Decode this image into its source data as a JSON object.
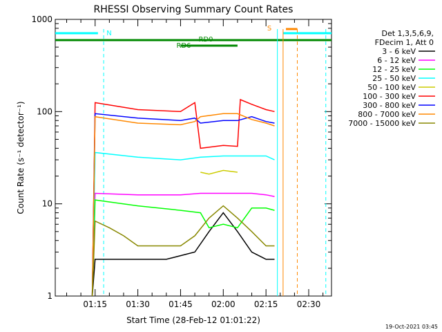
{
  "chart_data": {
    "type": "line",
    "title": "RHESSI Observing Summary Count Rates",
    "xlabel": "Start Time (28-Feb-12 01:01:22)",
    "ylabel": "Count Rate (s⁻¹ detector⁻¹)",
    "ylog": true,
    "ylim": [
      1,
      1000
    ],
    "xlim": [
      "01:01",
      "02:38"
    ],
    "x_ticks": [
      "01:15",
      "01:30",
      "01:45",
      "02:00",
      "02:15",
      "02:30"
    ],
    "y_ticks": [
      "1",
      "10",
      "100",
      "1000"
    ],
    "grid": false,
    "legend_header": [
      "Det 1,3,5,6,9,",
      "FDecim 1, Att 0"
    ],
    "legend_position": "right",
    "series": [
      {
        "name": "3 - 6 keV",
        "color": "#000000",
        "x": [
          "01:14",
          "01:15",
          "01:20",
          "01:30",
          "01:40",
          "01:50",
          "01:55",
          "02:00",
          "02:05",
          "02:10",
          "02:15",
          "02:18"
        ],
        "values": [
          1,
          2.5,
          2.5,
          2.5,
          2.5,
          3,
          5,
          8,
          5,
          3,
          2.5,
          2.5
        ]
      },
      {
        "name": "6 - 12 keV",
        "color": "#ff00ff",
        "x": [
          "01:14",
          "01:15",
          "01:30",
          "01:45",
          "01:52",
          "02:00",
          "02:05",
          "02:10",
          "02:15",
          "02:18"
        ],
        "values": [
          1,
          13,
          12.5,
          12.5,
          13,
          13,
          13,
          13,
          12.5,
          12
        ]
      },
      {
        "name": "12 - 25 keV",
        "color": "#00ff00",
        "x": [
          "01:14",
          "01:15",
          "01:30",
          "01:45",
          "01:52",
          "01:55",
          "02:00",
          "02:05",
          "02:10",
          "02:15",
          "02:18"
        ],
        "values": [
          1,
          11,
          9.5,
          8.5,
          8,
          5.5,
          6,
          5.5,
          9,
          9,
          8.5
        ]
      },
      {
        "name": "25 - 50 keV",
        "color": "#00ffff",
        "x": [
          "01:14",
          "01:15",
          "01:30",
          "01:45",
          "01:52",
          "02:00",
          "02:05",
          "02:10",
          "02:15",
          "02:18"
        ],
        "values": [
          1,
          36,
          32,
          30,
          32,
          33,
          33,
          33,
          33,
          30
        ]
      },
      {
        "name": "50 - 100 keV",
        "color": "#cccc00",
        "x": [
          "01:52",
          "01:55",
          "02:00",
          "02:05"
        ],
        "values": [
          22,
          21,
          23,
          22
        ]
      },
      {
        "name": "100 - 300 keV",
        "color": "#ff0000",
        "x": [
          "01:14",
          "01:15",
          "01:30",
          "01:45",
          "01:50",
          "01:52",
          "02:00",
          "02:05",
          "02:06",
          "02:10",
          "02:15",
          "02:18"
        ],
        "values": [
          1,
          125,
          105,
          100,
          125,
          40,
          43,
          42,
          135,
          120,
          105,
          100
        ]
      },
      {
        "name": "300 - 800 keV",
        "color": "#0000ff",
        "x": [
          "01:14",
          "01:15",
          "01:30",
          "01:45",
          "01:50",
          "01:52",
          "02:00",
          "02:05",
          "02:10",
          "02:15",
          "02:18"
        ],
        "values": [
          1,
          95,
          85,
          80,
          85,
          75,
          80,
          80,
          88,
          78,
          75
        ]
      },
      {
        "name": "800 - 7000 keV",
        "color": "#ff8800",
        "x": [
          "01:14",
          "01:15",
          "01:30",
          "01:45",
          "01:50",
          "01:52",
          "02:00",
          "02:05",
          "02:10",
          "02:15",
          "02:18"
        ],
        "values": [
          1,
          88,
          75,
          72,
          78,
          88,
          95,
          95,
          82,
          75,
          70
        ]
      },
      {
        "name": "7000 - 15000 keV",
        "color": "#888800",
        "x": [
          "01:14",
          "01:15",
          "01:20",
          "01:25",
          "01:30",
          "01:40",
          "01:45",
          "01:50",
          "01:55",
          "02:00",
          "02:05",
          "02:10",
          "02:15",
          "02:18"
        ],
        "values": [
          1,
          6.5,
          5.5,
          4.5,
          3.5,
          3.5,
          3.5,
          4.5,
          7,
          9.5,
          7,
          5,
          3.5,
          3.5
        ]
      }
    ],
    "annotations": [
      {
        "label": "N",
        "color": "#00ffff",
        "x_start": "01:01",
        "x_end": "01:16"
      },
      {
        "label": "N",
        "color": "#00ffff",
        "x_start": "02:21",
        "x_end": "02:38"
      },
      {
        "label": "RD0",
        "color": "#008800",
        "x_start": "01:01",
        "x_end": "02:38"
      },
      {
        "label": "RD6",
        "color": "#008800",
        "x_start": "01:45",
        "x_end": "02:05"
      },
      {
        "label": "S",
        "color": "#ff8800",
        "x_start": "02:22",
        "x_end": "02:26"
      }
    ],
    "vertical_lines": [
      {
        "x": "01:18",
        "color": "#00ffff",
        "style": "dashed"
      },
      {
        "x": "02:19",
        "color": "#00ffff",
        "style": "solid"
      },
      {
        "x": "02:21",
        "color": "#ff8800",
        "style": "solid"
      },
      {
        "x": "02:26",
        "color": "#ff8800",
        "style": "dashed"
      },
      {
        "x": "02:36",
        "color": "#00ffff",
        "style": "dashed"
      }
    ]
  },
  "stamp": "19-Oct-2021 03:45"
}
